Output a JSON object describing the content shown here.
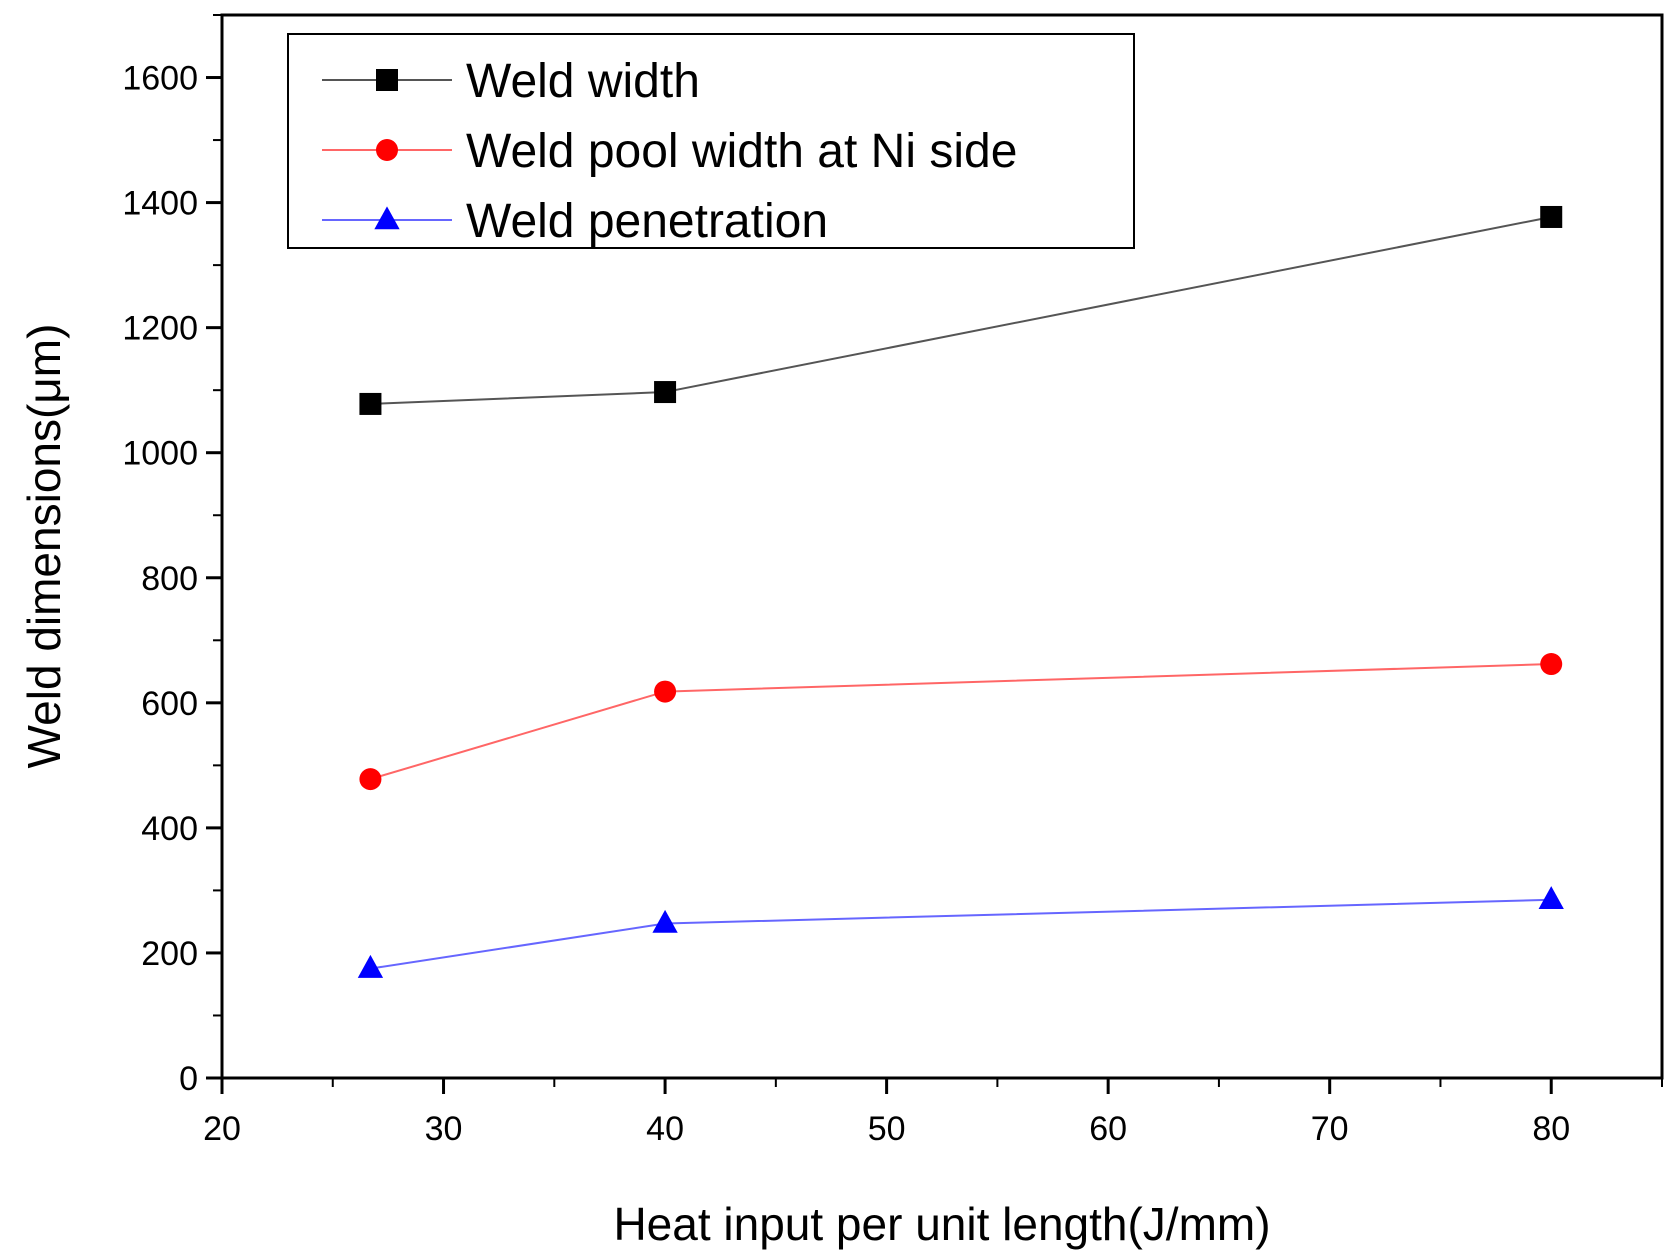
{
  "chart_data": {
    "type": "line",
    "title": "",
    "xlabel": "Heat input per unit length(J/mm)",
    "ylabel": "Weld dimensions(μm)",
    "xlim": [
      20,
      85
    ],
    "ylim": [
      0,
      1700
    ],
    "xticks": [
      20,
      30,
      40,
      50,
      60,
      70,
      80
    ],
    "xtick_labels": [
      "20",
      "30",
      "40",
      "50",
      "60",
      "70",
      "80"
    ],
    "xminor_step": 5,
    "yticks": [
      0,
      200,
      400,
      600,
      800,
      1000,
      1200,
      1400,
      1600
    ],
    "ytick_labels": [
      "0",
      "200",
      "400",
      "600",
      "800",
      "1000",
      "1200",
      "1400",
      "1600"
    ],
    "yminor_step": 100,
    "grid": false,
    "legend_position": "top-left",
    "x": [
      26.7,
      40,
      80
    ],
    "series": [
      {
        "name": "Weld width",
        "values": [
          1078,
          1097,
          1377
        ],
        "color": "#000000",
        "line_color": "#555555",
        "marker": "square"
      },
      {
        "name": "Weld pool width at Ni side",
        "values": [
          478,
          618,
          662
        ],
        "color": "#ff0000",
        "line_color": "#ff6666",
        "marker": "circle"
      },
      {
        "name": "Weld penetration",
        "values": [
          175,
          247,
          285
        ],
        "color": "#0000ff",
        "line_color": "#6666ff",
        "marker": "triangle"
      }
    ]
  }
}
